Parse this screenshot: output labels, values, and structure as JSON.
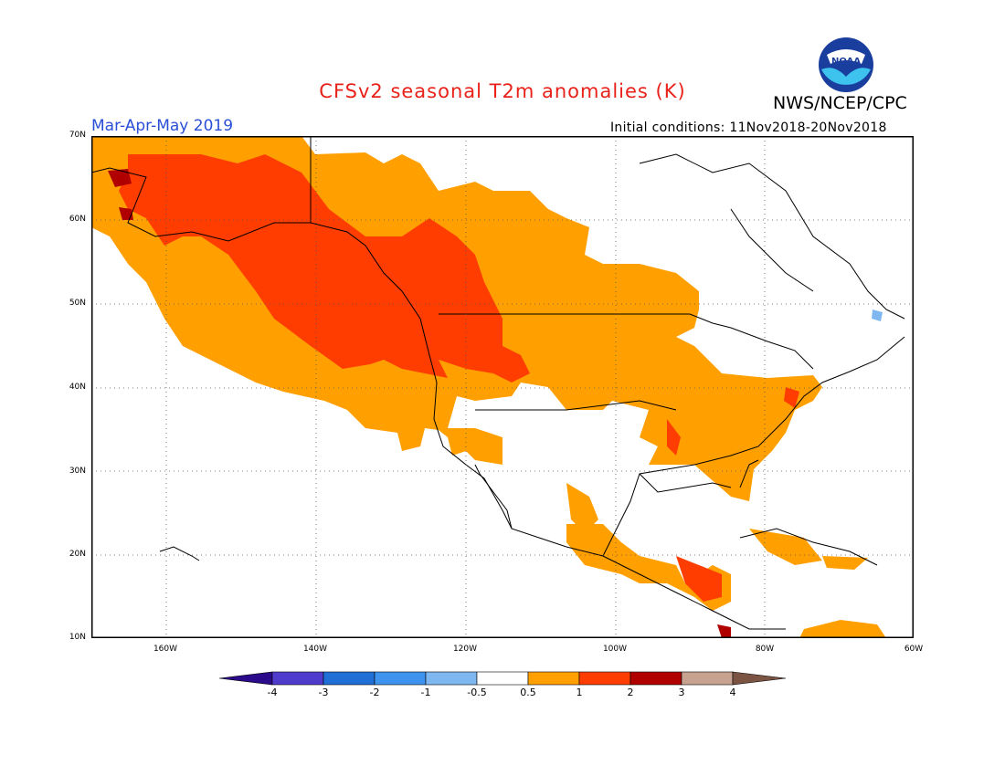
{
  "title": "CFSv2 seasonal T2m anomalies (K)",
  "agency": "NWS/NCEP/CPC",
  "logo_text": "NOAA",
  "season": "Mar-Apr-May 2019",
  "initial_conditions": "Initial conditions: 11Nov2018-20Nov2018",
  "colors": {
    "title": "#e8221a",
    "season": "#2a4fd6",
    "anom_05_1": "#ff9f00",
    "anom_1_2": "#ff3d00",
    "anom_2_3": "#b00000",
    "anom_m1_m05": "#7fb7f0"
  },
  "lat_labels": [
    "70N",
    "60N",
    "50N",
    "40N",
    "30N",
    "20N",
    "10N"
  ],
  "lon_labels": [
    "160W",
    "140W",
    "120W",
    "100W",
    "80W",
    "60W"
  ],
  "colorbar": {
    "labels": [
      "-4",
      "-3",
      "-2",
      "-1",
      "-0.5",
      "0.5",
      "1",
      "2",
      "3",
      "4"
    ],
    "colors": [
      "#2b0b8c",
      "#4f3ccc",
      "#1f6fd6",
      "#3d93ee",
      "#7fb7f0",
      "#ffffff",
      "#ff9f00",
      "#ff3d00",
      "#b00000",
      "#c8a290",
      "#7b5444"
    ]
  }
}
